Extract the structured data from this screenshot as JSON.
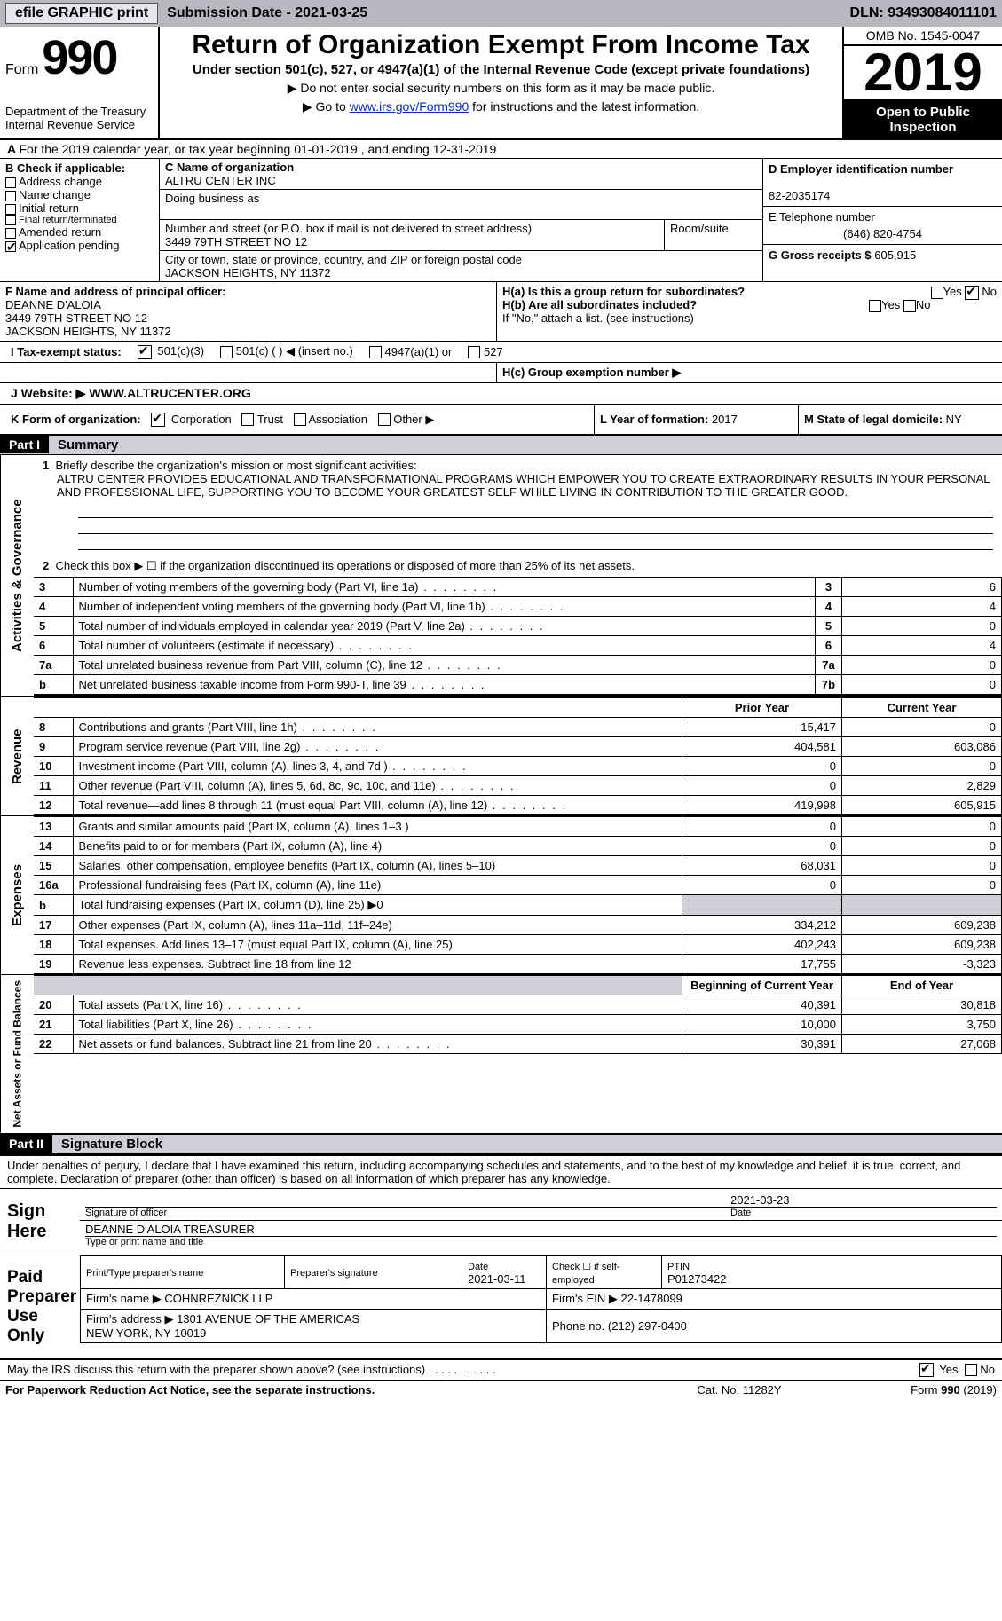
{
  "top": {
    "efile": "efile GRAPHIC print",
    "submission": "Submission Date - 2021-03-25",
    "dln": "DLN: 93493084011101"
  },
  "header": {
    "form": "Form",
    "num": "990",
    "dept": "Department of the Treasury\nInternal Revenue Service",
    "title": "Return of Organization Exempt From Income Tax",
    "sub1": "Under section 501(c), 527, or 4947(a)(1) of the Internal Revenue Code (except private foundations)",
    "sub2": "▶ Do not enter social security numbers on this form as it may be made public.",
    "sub3_pre": "▶ Go to ",
    "sub3_link": "www.irs.gov/Form990",
    "sub3_post": " for instructions and the latest information.",
    "omb": "OMB No. 1545-0047",
    "year": "2019",
    "oti": "Open to Public Inspection"
  },
  "lineA": "For the 2019 calendar year, or tax year beginning 01-01-2019    , and ending 12-31-2019",
  "B": {
    "head": "B Check if applicable:",
    "items": [
      "Address change",
      "Name change",
      "Initial return",
      "Final return/terminated",
      "Amended return",
      "Application pending"
    ]
  },
  "C": {
    "name_lbl": "C Name of organization",
    "name": "ALTRU CENTER INC",
    "dba_lbl": "Doing business as",
    "dba": "",
    "addr_lbl": "Number and street (or P.O. box if mail is not delivered to street address)",
    "room_lbl": "Room/suite",
    "addr": "3449 79TH STREET NO 12",
    "city_lbl": "City or town, state or province, country, and ZIP or foreign postal code",
    "city": "JACKSON HEIGHTS, NY  11372"
  },
  "D": {
    "lbl": "D Employer identification number",
    "val": "82-2035174"
  },
  "E": {
    "lbl": "E Telephone number",
    "val": "(646) 820-4754"
  },
  "G": {
    "lbl": "G Gross receipts $",
    "val": "605,915"
  },
  "F": {
    "lbl": "F  Name and address of principal officer:",
    "name": "DEANNE D'ALOIA",
    "addr": "3449 79TH STREET NO 12\nJACKSON HEIGHTS, NY  11372"
  },
  "H": {
    "a": "H(a)  Is this a group return for subordinates?",
    "b": "H(b)  Are all subordinates included?",
    "note": "If \"No,\" attach a list. (see instructions)",
    "c": "H(c)  Group exemption number ▶"
  },
  "I": {
    "lbl": "I    Tax-exempt status:",
    "opts": [
      "501(c)(3)",
      "501(c) (  ) ◀ (insert no.)",
      "4947(a)(1) or",
      "527"
    ]
  },
  "J": {
    "lbl": "J   Website: ▶",
    "val": "WWW.ALTRUCENTER.ORG"
  },
  "K": {
    "lbl": "K Form of organization:",
    "opts": [
      "Corporation",
      "Trust",
      "Association",
      "Other ▶"
    ]
  },
  "L": {
    "lbl": "L Year of formation:",
    "val": "2017"
  },
  "M": {
    "lbl": "M State of legal domicile:",
    "val": "NY"
  },
  "part1": {
    "hd": "Part I",
    "title": "Summary"
  },
  "summary": {
    "q1_lbl": "1",
    "q1_txt": "Briefly describe the organization's mission or most significant activities:",
    "q1_body": "ALTRU CENTER PROVIDES EDUCATIONAL AND TRANSFORMATIONAL PROGRAMS WHICH EMPOWER YOU TO CREATE EXTRAORDINARY RESULTS IN YOUR PERSONAL AND PROFESSIONAL LIFE, SUPPORTING YOU TO BECOME YOUR GREATEST SELF WHILE LIVING IN CONTRIBUTION TO THE GREATER GOOD.",
    "q2": "Check this box ▶ ☐  if the organization discontinued its operations or disposed of more than 25% of its net assets.",
    "rows37": [
      {
        "n": "3",
        "t": "Number of voting members of the governing body (Part VI, line 1a)",
        "r": "3",
        "v": "6"
      },
      {
        "n": "4",
        "t": "Number of independent voting members of the governing body (Part VI, line 1b)",
        "r": "4",
        "v": "4"
      },
      {
        "n": "5",
        "t": "Total number of individuals employed in calendar year 2019 (Part V, line 2a)",
        "r": "5",
        "v": "0"
      },
      {
        "n": "6",
        "t": "Total number of volunteers (estimate if necessary)",
        "r": "6",
        "v": "4"
      },
      {
        "n": "7a",
        "t": "Total unrelated business revenue from Part VIII, column (C), line 12",
        "r": "7a",
        "v": "0"
      },
      {
        "n": "b",
        "t": "Net unrelated business taxable income from Form 990-T, line 39",
        "r": "7b",
        "v": "0"
      }
    ]
  },
  "rev": {
    "side": "Revenue",
    "hdr_prior": "Prior Year",
    "hdr_curr": "Current Year",
    "rows": [
      {
        "n": "8",
        "t": "Contributions and grants (Part VIII, line 1h)",
        "a": "15,417",
        "b": "0"
      },
      {
        "n": "9",
        "t": "Program service revenue (Part VIII, line 2g)",
        "a": "404,581",
        "b": "603,086"
      },
      {
        "n": "10",
        "t": "Investment income (Part VIII, column (A), lines 3, 4, and 7d )",
        "a": "0",
        "b": "0"
      },
      {
        "n": "11",
        "t": "Other revenue (Part VIII, column (A), lines 5, 6d, 8c, 9c, 10c, and 11e)",
        "a": "0",
        "b": "2,829"
      },
      {
        "n": "12",
        "t": "Total revenue—add lines 8 through 11 (must equal Part VIII, column (A), line 12)",
        "a": "419,998",
        "b": "605,915"
      }
    ]
  },
  "exp": {
    "side": "Expenses",
    "rows": [
      {
        "n": "13",
        "t": "Grants and similar amounts paid (Part IX, column (A), lines 1–3 )",
        "a": "0",
        "b": "0"
      },
      {
        "n": "14",
        "t": "Benefits paid to or for members (Part IX, column (A), line 4)",
        "a": "0",
        "b": "0"
      },
      {
        "n": "15",
        "t": "Salaries, other compensation, employee benefits (Part IX, column (A), lines 5–10)",
        "a": "68,031",
        "b": "0"
      },
      {
        "n": "16a",
        "t": "Professional fundraising fees (Part IX, column (A), line 11e)",
        "a": "0",
        "b": "0"
      },
      {
        "n": "b",
        "t": "Total fundraising expenses (Part IX, column (D), line 25) ▶0",
        "a": "",
        "b": "",
        "grey": true
      },
      {
        "n": "17",
        "t": "Other expenses (Part IX, column (A), lines 11a–11d, 11f–24e)",
        "a": "334,212",
        "b": "609,238"
      },
      {
        "n": "18",
        "t": "Total expenses. Add lines 13–17 (must equal Part IX, column (A), line 25)",
        "a": "402,243",
        "b": "609,238"
      },
      {
        "n": "19",
        "t": "Revenue less expenses. Subtract line 18 from line 12",
        "a": "17,755",
        "b": "-3,323"
      }
    ]
  },
  "na": {
    "side": "Net Assets or Fund Balances",
    "hdr_a": "Beginning of Current Year",
    "hdr_b": "End of Year",
    "rows": [
      {
        "n": "20",
        "t": "Total assets (Part X, line 16)",
        "a": "40,391",
        "b": "30,818"
      },
      {
        "n": "21",
        "t": "Total liabilities (Part X, line 26)",
        "a": "10,000",
        "b": "3,750"
      },
      {
        "n": "22",
        "t": "Net assets or fund balances. Subtract line 21 from line 20",
        "a": "30,391",
        "b": "27,068"
      }
    ]
  },
  "part2": {
    "hd": "Part II",
    "title": "Signature Block"
  },
  "sig": {
    "decl": "Under penalties of perjury, I declare that I have examined this return, including accompanying schedules and statements, and to the best of my knowledge and belief, it is true, correct, and complete. Declaration of preparer (other than officer) is based on all information of which preparer has any knowledge.",
    "sign_here": "Sign Here",
    "sig_officer": "Signature of officer",
    "date_v": "2021-03-23",
    "date": "Date",
    "typed": "DEANNE D'ALOIA  TREASURER",
    "typed_lbl": "Type or print name and title"
  },
  "paid": {
    "lbl": "Paid Preparer Use Only",
    "h": [
      "Print/Type preparer's name",
      "Preparer's signature",
      "Date",
      "",
      "PTIN"
    ],
    "r1": [
      "",
      "",
      "2021-03-11",
      "Check ☐ if self-employed",
      "P01273422"
    ],
    "firm_name_lbl": "Firm's name    ▶",
    "firm_name": "COHNREZNICK LLP",
    "firm_ein_lbl": "Firm's EIN ▶",
    "firm_ein": "22-1478099",
    "firm_addr_lbl": "Firm's address ▶",
    "firm_addr": "1301 AVENUE OF THE AMERICAS\nNEW YORK, NY  10019",
    "phone_lbl": "Phone no.",
    "phone": "(212) 297-0400"
  },
  "discuss": "May the IRS discuss this return with the preparer shown above? (see instructions)",
  "footer": {
    "l": "For Paperwork Reduction Act Notice, see the separate instructions.",
    "m": "Cat. No. 11282Y",
    "r": "Form 990 (2019)"
  },
  "sides": {
    "ag": "Activities & Governance"
  }
}
